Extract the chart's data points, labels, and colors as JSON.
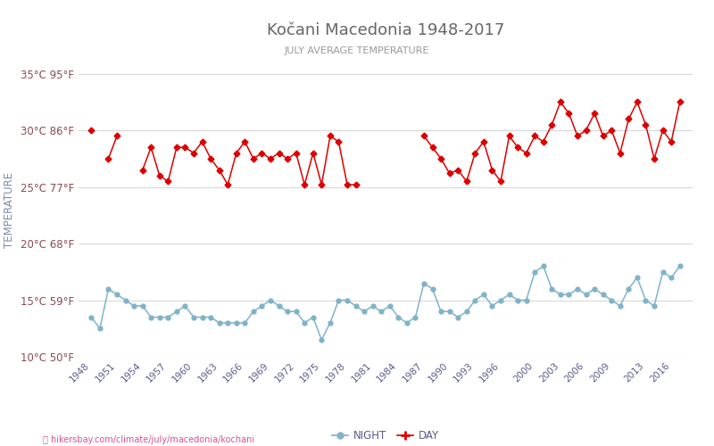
{
  "title": "Kočani Macedonia 1948-2017",
  "subtitle": "JULY AVERAGE TEMPERATURE",
  "ylabel": "TEMPERATURE",
  "url_text": "hikersbay.com/climate/july/macedonia/kochani",
  "years": [
    1948,
    1949,
    1950,
    1951,
    1952,
    1953,
    1954,
    1955,
    1956,
    1957,
    1958,
    1959,
    1960,
    1961,
    1962,
    1963,
    1964,
    1965,
    1966,
    1967,
    1968,
    1969,
    1970,
    1971,
    1972,
    1973,
    1974,
    1975,
    1976,
    1977,
    1978,
    1979,
    1980,
    1981,
    1982,
    1983,
    1984,
    1985,
    1986,
    1987,
    1988,
    1989,
    1990,
    1991,
    1992,
    1993,
    1994,
    1995,
    1996,
    1997,
    1998,
    1999,
    2000,
    2001,
    2002,
    2003,
    2004,
    2005,
    2006,
    2007,
    2008,
    2009,
    2010,
    2011,
    2012,
    2013,
    2014,
    2015,
    2016,
    2017
  ],
  "day_temps": [
    30.0,
    null,
    27.5,
    29.5,
    null,
    null,
    26.5,
    28.5,
    26.0,
    25.5,
    28.5,
    28.5,
    28.0,
    29.0,
    27.5,
    26.5,
    25.2,
    28.0,
    29.0,
    27.5,
    28.0,
    27.5,
    28.0,
    27.5,
    28.0,
    25.2,
    28.0,
    25.2,
    29.5,
    29.0,
    25.2,
    25.2,
    null,
    null,
    null,
    null,
    null,
    null,
    null,
    29.5,
    28.5,
    27.5,
    26.2,
    26.5,
    25.5,
    28.0,
    29.0,
    26.5,
    25.5,
    29.5,
    28.5,
    28.0,
    29.5,
    29.0,
    30.5,
    32.5,
    31.5,
    29.5,
    30.0,
    31.5,
    29.5,
    30.0,
    28.0,
    31.0,
    32.5,
    30.5,
    27.5,
    30.0,
    29.0,
    32.5
  ],
  "night_temps": [
    13.5,
    12.5,
    16.0,
    15.5,
    15.0,
    14.5,
    14.5,
    13.5,
    13.5,
    13.5,
    14.0,
    14.5,
    13.5,
    13.5,
    13.5,
    13.0,
    13.0,
    13.0,
    13.0,
    14.0,
    14.5,
    15.0,
    14.5,
    14.0,
    14.0,
    13.0,
    13.5,
    11.5,
    13.0,
    15.0,
    15.0,
    14.5,
    14.0,
    14.5,
    14.0,
    14.5,
    13.5,
    13.0,
    13.5,
    16.5,
    16.0,
    14.0,
    14.0,
    13.5,
    14.0,
    15.0,
    15.5,
    14.5,
    15.0,
    15.5,
    15.0,
    15.0,
    17.5,
    18.0,
    16.0,
    15.5,
    15.5,
    16.0,
    15.5,
    16.0,
    15.5,
    15.0,
    14.5,
    16.0,
    17.0,
    15.0,
    14.5,
    17.5,
    17.0,
    18.0
  ],
  "ylim": [
    10,
    36
  ],
  "yticks_c": [
    10,
    15,
    20,
    25,
    30,
    35
  ],
  "yticks_labels": [
    "10°C 50°F",
    "15°C 59°F",
    "20°C 68°F",
    "25°C 77°F",
    "30°C 86°F",
    "35°C 95°F"
  ],
  "xticks": [
    1948,
    1951,
    1954,
    1957,
    1960,
    1963,
    1966,
    1969,
    1972,
    1975,
    1978,
    1981,
    1984,
    1987,
    1990,
    1993,
    1996,
    2000,
    2003,
    2006,
    2009,
    2013,
    2016
  ],
  "day_color": "#dd0000",
  "night_color": "#7fb3c8",
  "bg_color": "#ffffff",
  "grid_color": "#d8d8d8",
  "title_color": "#666666",
  "subtitle_color": "#999999",
  "ylabel_color": "#7f8ab0",
  "ytick_color": "#8b4a52",
  "xtick_color": "#5a5a8a"
}
